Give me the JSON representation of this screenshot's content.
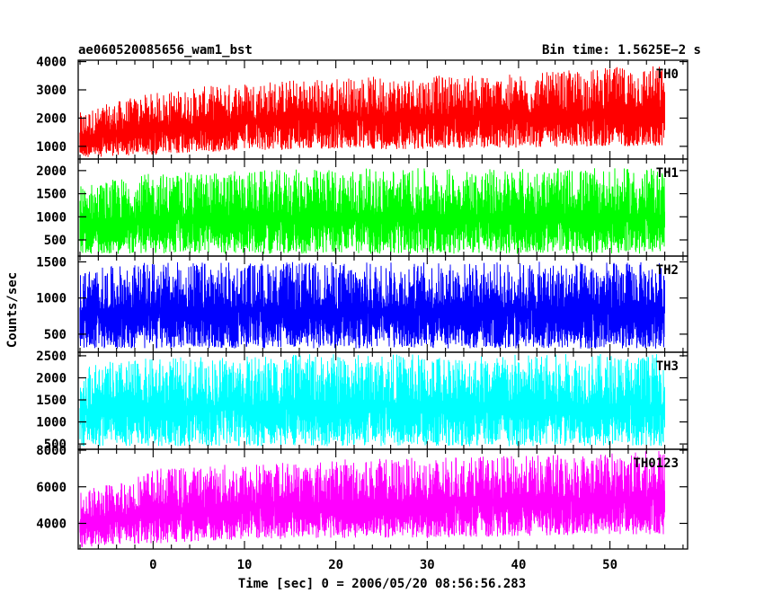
{
  "chart_data": {
    "type": "line",
    "title_left": "ae060520085656_wam1_bst",
    "title_right": "Bin time: 1.5625E−2 s",
    "xlabel": "Time [sec] 0 = 2006/05/20 08:56:56.283",
    "ylabel": "Counts/sec",
    "xlim": [
      -8.2,
      58.5
    ],
    "x_ticks": [
      0,
      10,
      20,
      30,
      40,
      50
    ],
    "x_start": -8.0,
    "x_end": 56.0,
    "bin_time": 0.015625,
    "panels": [
      {
        "name": "TH0",
        "color": "#ff0000",
        "ylim": [
          550,
          4050
        ],
        "y_ticks": [
          1000,
          2000,
          3000,
          4000
        ],
        "envelope": {
          "x": [
            -8,
            -4,
            0,
            10,
            20,
            30,
            40,
            50,
            56
          ],
          "low": [
            600,
            650,
            700,
            850,
            900,
            900,
            950,
            1000,
            1000
          ],
          "high": [
            2200,
            2600,
            2900,
            3300,
            3450,
            3500,
            3550,
            3800,
            3900
          ]
        }
      },
      {
        "name": "TH1",
        "color": "#00ff00",
        "ylim": [
          150,
          2250
        ],
        "y_ticks": [
          500,
          1000,
          1500,
          2000
        ],
        "envelope": {
          "x": [
            -8,
            0,
            20,
            40,
            56
          ],
          "low": [
            200,
            200,
            200,
            200,
            200
          ],
          "high": [
            1700,
            1950,
            2050,
            2050,
            2050
          ]
        }
      },
      {
        "name": "TH2",
        "color": "#0000ff",
        "ylim": [
          250,
          1580
        ],
        "y_ticks": [
          500,
          1000,
          1500
        ],
        "envelope": {
          "x": [
            -8,
            0,
            20,
            40,
            56
          ],
          "low": [
            300,
            300,
            300,
            300,
            300
          ],
          "high": [
            1400,
            1500,
            1500,
            1500,
            1500
          ]
        }
      },
      {
        "name": "TH3",
        "color": "#00ffff",
        "ylim": [
          380,
          2580
        ],
        "y_ticks": [
          500,
          1000,
          1500,
          2000,
          2500
        ],
        "envelope": {
          "x": [
            -8,
            0,
            20,
            40,
            56
          ],
          "low": [
            450,
            450,
            450,
            450,
            450
          ],
          "high": [
            2300,
            2450,
            2550,
            2550,
            2550
          ]
        }
      },
      {
        "name": "TH0123",
        "color": "#ff00ff",
        "ylim": [
          2600,
          8050
        ],
        "y_ticks": [
          4000,
          6000,
          8000
        ],
        "envelope": {
          "x": [
            -8,
            -4,
            0,
            10,
            20,
            30,
            40,
            50,
            56
          ],
          "low": [
            2700,
            2800,
            2900,
            3100,
            3200,
            3200,
            3300,
            3400,
            3400
          ],
          "high": [
            5800,
            6300,
            7000,
            7300,
            7500,
            7600,
            7700,
            7900,
            8000
          ]
        }
      }
    ]
  }
}
